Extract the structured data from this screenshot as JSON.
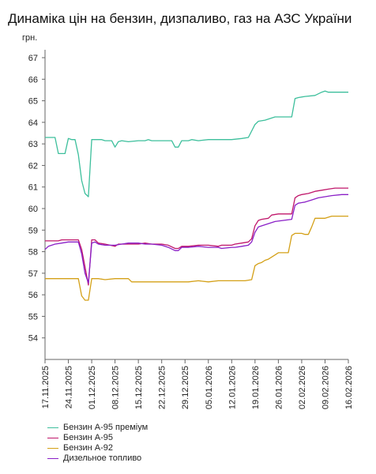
{
  "chart_data": {
    "type": "line",
    "title": "Динаміка цін на бензин, дизпаливо, газ на АЗС України",
    "ylabel": "грн.",
    "xlabel": "",
    "ylim": [
      53,
      67
    ],
    "yticks": [
      54,
      55,
      56,
      57,
      58,
      59,
      60,
      61,
      62,
      63,
      64,
      65,
      66,
      67
    ],
    "xlim": [
      "2025-11-17",
      "2026-02-16"
    ],
    "xticks": [
      "17.11.2025",
      "24.11.2025",
      "01.12.2025",
      "08.12.2025",
      "15.12.2025",
      "22.12.2025",
      "29.12.2025",
      "05.01.2026",
      "12.01.2026",
      "19.01.2026",
      "26.01.2026",
      "02.02.2026",
      "09.02.2026",
      "16.02.2026"
    ],
    "grid": false,
    "legend_position": "bottom-left",
    "series": [
      {
        "name": "Бензин А-95 преміум",
        "color": "#3dbf9c",
        "points": [
          [
            "2025-11-17",
            63.3
          ],
          [
            "2025-11-19",
            63.3
          ],
          [
            "2025-11-20",
            63.3
          ],
          [
            "2025-11-21",
            62.55
          ],
          [
            "2025-11-22",
            62.55
          ],
          [
            "2025-11-23",
            62.55
          ],
          [
            "2025-11-24",
            63.25
          ],
          [
            "2025-11-25",
            63.2
          ],
          [
            "2025-11-26",
            63.2
          ],
          [
            "2025-11-27",
            62.5
          ],
          [
            "2025-11-28",
            61.3
          ],
          [
            "2025-11-29",
            60.7
          ],
          [
            "2025-11-30",
            60.55
          ],
          [
            "2025-12-01",
            63.2
          ],
          [
            "2025-12-02",
            63.2
          ],
          [
            "2025-12-04",
            63.2
          ],
          [
            "2025-12-05",
            63.15
          ],
          [
            "2025-12-07",
            63.15
          ],
          [
            "2025-12-08",
            62.85
          ],
          [
            "2025-12-09",
            63.1
          ],
          [
            "2025-12-10",
            63.15
          ],
          [
            "2025-12-12",
            63.1
          ],
          [
            "2025-12-15",
            63.15
          ],
          [
            "2025-12-17",
            63.15
          ],
          [
            "2025-12-18",
            63.2
          ],
          [
            "2025-12-19",
            63.15
          ],
          [
            "2025-12-22",
            63.15
          ],
          [
            "2025-12-25",
            63.15
          ],
          [
            "2025-12-26",
            62.85
          ],
          [
            "2025-12-27",
            62.85
          ],
          [
            "2025-12-28",
            63.15
          ],
          [
            "2025-12-30",
            63.15
          ],
          [
            "2025-12-31",
            63.2
          ],
          [
            "2026-01-02",
            63.15
          ],
          [
            "2026-01-05",
            63.2
          ],
          [
            "2026-01-08",
            63.2
          ],
          [
            "2026-01-12",
            63.2
          ],
          [
            "2026-01-15",
            63.25
          ],
          [
            "2026-01-17",
            63.3
          ],
          [
            "2026-01-19",
            63.9
          ],
          [
            "2026-01-20",
            64.05
          ],
          [
            "2026-01-22",
            64.1
          ],
          [
            "2026-01-23",
            64.15
          ],
          [
            "2026-01-24",
            64.2
          ],
          [
            "2026-01-25",
            64.25
          ],
          [
            "2026-01-27",
            64.25
          ],
          [
            "2026-01-30",
            64.25
          ],
          [
            "2026-01-31",
            65.1
          ],
          [
            "2026-02-01",
            65.15
          ],
          [
            "2026-02-03",
            65.2
          ],
          [
            "2026-02-06",
            65.25
          ],
          [
            "2026-02-08",
            65.4
          ],
          [
            "2026-02-09",
            65.45
          ],
          [
            "2026-02-10",
            65.4
          ],
          [
            "2026-02-12",
            65.4
          ],
          [
            "2026-02-16",
            65.4
          ]
        ]
      },
      {
        "name": "Бензин А-95",
        "color": "#c0176b",
        "points": [
          [
            "2025-11-17",
            58.5
          ],
          [
            "2025-11-20",
            58.5
          ],
          [
            "2025-11-21",
            58.5
          ],
          [
            "2025-11-22",
            58.55
          ],
          [
            "2025-11-24",
            58.55
          ],
          [
            "2025-11-27",
            58.55
          ],
          [
            "2025-11-28",
            58.1
          ],
          [
            "2025-11-29",
            57.3
          ],
          [
            "2025-11-30",
            56.45
          ],
          [
            "2025-12-01",
            58.55
          ],
          [
            "2025-12-02",
            58.55
          ],
          [
            "2025-12-03",
            58.4
          ],
          [
            "2025-12-05",
            58.35
          ],
          [
            "2025-12-08",
            58.25
          ],
          [
            "2025-12-09",
            58.35
          ],
          [
            "2025-12-12",
            58.35
          ],
          [
            "2025-12-15",
            58.35
          ],
          [
            "2025-12-17",
            58.4
          ],
          [
            "2025-12-19",
            58.35
          ],
          [
            "2025-12-22",
            58.35
          ],
          [
            "2025-12-24",
            58.3
          ],
          [
            "2025-12-26",
            58.15
          ],
          [
            "2025-12-27",
            58.15
          ],
          [
            "2025-12-28",
            58.25
          ],
          [
            "2025-12-30",
            58.25
          ],
          [
            "2026-01-02",
            58.3
          ],
          [
            "2026-01-05",
            58.3
          ],
          [
            "2026-01-08",
            58.25
          ],
          [
            "2026-01-09",
            58.3
          ],
          [
            "2026-01-12",
            58.3
          ],
          [
            "2026-01-13",
            58.35
          ],
          [
            "2026-01-15",
            58.4
          ],
          [
            "2026-01-17",
            58.45
          ],
          [
            "2026-01-18",
            58.6
          ],
          [
            "2026-01-19",
            59.2
          ],
          [
            "2026-01-20",
            59.45
          ],
          [
            "2026-01-21",
            59.5
          ],
          [
            "2026-01-23",
            59.55
          ],
          [
            "2026-01-24",
            59.7
          ],
          [
            "2026-01-26",
            59.75
          ],
          [
            "2026-01-30",
            59.75
          ],
          [
            "2026-01-31",
            60.5
          ],
          [
            "2026-02-01",
            60.6
          ],
          [
            "2026-02-02",
            60.65
          ],
          [
            "2026-02-04",
            60.7
          ],
          [
            "2026-02-06",
            60.8
          ],
          [
            "2026-02-08",
            60.85
          ],
          [
            "2026-02-10",
            60.9
          ],
          [
            "2026-02-12",
            60.95
          ],
          [
            "2026-02-14",
            60.95
          ],
          [
            "2026-02-16",
            60.95
          ]
        ]
      },
      {
        "name": "Бензин А-92",
        "color": "#d4a017",
        "points": [
          [
            "2025-11-17",
            56.75
          ],
          [
            "2025-11-19",
            56.75
          ],
          [
            "2025-11-21",
            56.75
          ],
          [
            "2025-11-24",
            56.75
          ],
          [
            "2025-11-27",
            56.75
          ],
          [
            "2025-11-28",
            55.95
          ],
          [
            "2025-11-29",
            55.75
          ],
          [
            "2025-11-30",
            55.75
          ],
          [
            "2025-12-01",
            56.75
          ],
          [
            "2025-12-03",
            56.75
          ],
          [
            "2025-12-05",
            56.7
          ],
          [
            "2025-12-08",
            56.75
          ],
          [
            "2025-12-12",
            56.75
          ],
          [
            "2025-12-13",
            56.6
          ],
          [
            "2025-12-15",
            56.6
          ],
          [
            "2025-12-19",
            56.6
          ],
          [
            "2025-12-22",
            56.6
          ],
          [
            "2025-12-26",
            56.6
          ],
          [
            "2025-12-30",
            56.6
          ],
          [
            "2026-01-02",
            56.65
          ],
          [
            "2026-01-05",
            56.6
          ],
          [
            "2026-01-08",
            56.65
          ],
          [
            "2026-01-12",
            56.65
          ],
          [
            "2026-01-16",
            56.65
          ],
          [
            "2026-01-18",
            56.7
          ],
          [
            "2026-01-19",
            57.35
          ],
          [
            "2026-01-20",
            57.45
          ],
          [
            "2026-01-21",
            57.5
          ],
          [
            "2026-01-22",
            57.6
          ],
          [
            "2026-01-23",
            57.65
          ],
          [
            "2026-01-25",
            57.85
          ],
          [
            "2026-01-26",
            57.95
          ],
          [
            "2026-01-29",
            57.95
          ],
          [
            "2026-01-30",
            58.75
          ],
          [
            "2026-01-31",
            58.85
          ],
          [
            "2026-02-02",
            58.85
          ],
          [
            "2026-02-03",
            58.8
          ],
          [
            "2026-02-04",
            58.8
          ],
          [
            "2026-02-05",
            59.15
          ],
          [
            "2026-02-06",
            59.55
          ],
          [
            "2026-02-09",
            59.55
          ],
          [
            "2026-02-11",
            59.65
          ],
          [
            "2026-02-13",
            59.65
          ],
          [
            "2026-02-16",
            59.65
          ]
        ]
      },
      {
        "name": "Дизельное топливо",
        "color": "#8a1fc7",
        "points": [
          [
            "2025-11-17",
            58.1
          ],
          [
            "2025-11-18",
            58.25
          ],
          [
            "2025-11-20",
            58.35
          ],
          [
            "2025-11-22",
            58.4
          ],
          [
            "2025-11-24",
            58.45
          ],
          [
            "2025-11-27",
            58.45
          ],
          [
            "2025-11-28",
            57.9
          ],
          [
            "2025-11-29",
            57.0
          ],
          [
            "2025-11-30",
            56.55
          ],
          [
            "2025-12-01",
            58.4
          ],
          [
            "2025-12-02",
            58.45
          ],
          [
            "2025-12-03",
            58.35
          ],
          [
            "2025-12-05",
            58.3
          ],
          [
            "2025-12-08",
            58.3
          ],
          [
            "2025-12-10",
            58.35
          ],
          [
            "2025-12-12",
            58.4
          ],
          [
            "2025-12-15",
            58.4
          ],
          [
            "2025-12-17",
            58.35
          ],
          [
            "2025-12-19",
            58.35
          ],
          [
            "2025-12-22",
            58.3
          ],
          [
            "2025-12-24",
            58.2
          ],
          [
            "2025-12-26",
            58.05
          ],
          [
            "2025-12-27",
            58.05
          ],
          [
            "2025-12-28",
            58.2
          ],
          [
            "2025-12-30",
            58.2
          ],
          [
            "2026-01-02",
            58.25
          ],
          [
            "2026-01-05",
            58.2
          ],
          [
            "2026-01-08",
            58.2
          ],
          [
            "2026-01-09",
            58.15
          ],
          [
            "2026-01-12",
            58.2
          ],
          [
            "2026-01-13",
            58.2
          ],
          [
            "2026-01-15",
            58.25
          ],
          [
            "2026-01-17",
            58.3
          ],
          [
            "2026-01-18",
            58.45
          ],
          [
            "2026-01-19",
            58.9
          ],
          [
            "2026-01-20",
            59.15
          ],
          [
            "2026-01-23",
            59.3
          ],
          [
            "2026-01-25",
            59.4
          ],
          [
            "2026-01-30",
            59.5
          ],
          [
            "2026-01-31",
            60.15
          ],
          [
            "2026-02-01",
            60.25
          ],
          [
            "2026-02-03",
            60.3
          ],
          [
            "2026-02-05",
            60.4
          ],
          [
            "2026-02-07",
            60.5
          ],
          [
            "2026-02-09",
            60.55
          ],
          [
            "2026-02-11",
            60.6
          ],
          [
            "2026-02-14",
            60.65
          ],
          [
            "2026-02-16",
            60.65
          ]
        ]
      }
    ]
  }
}
